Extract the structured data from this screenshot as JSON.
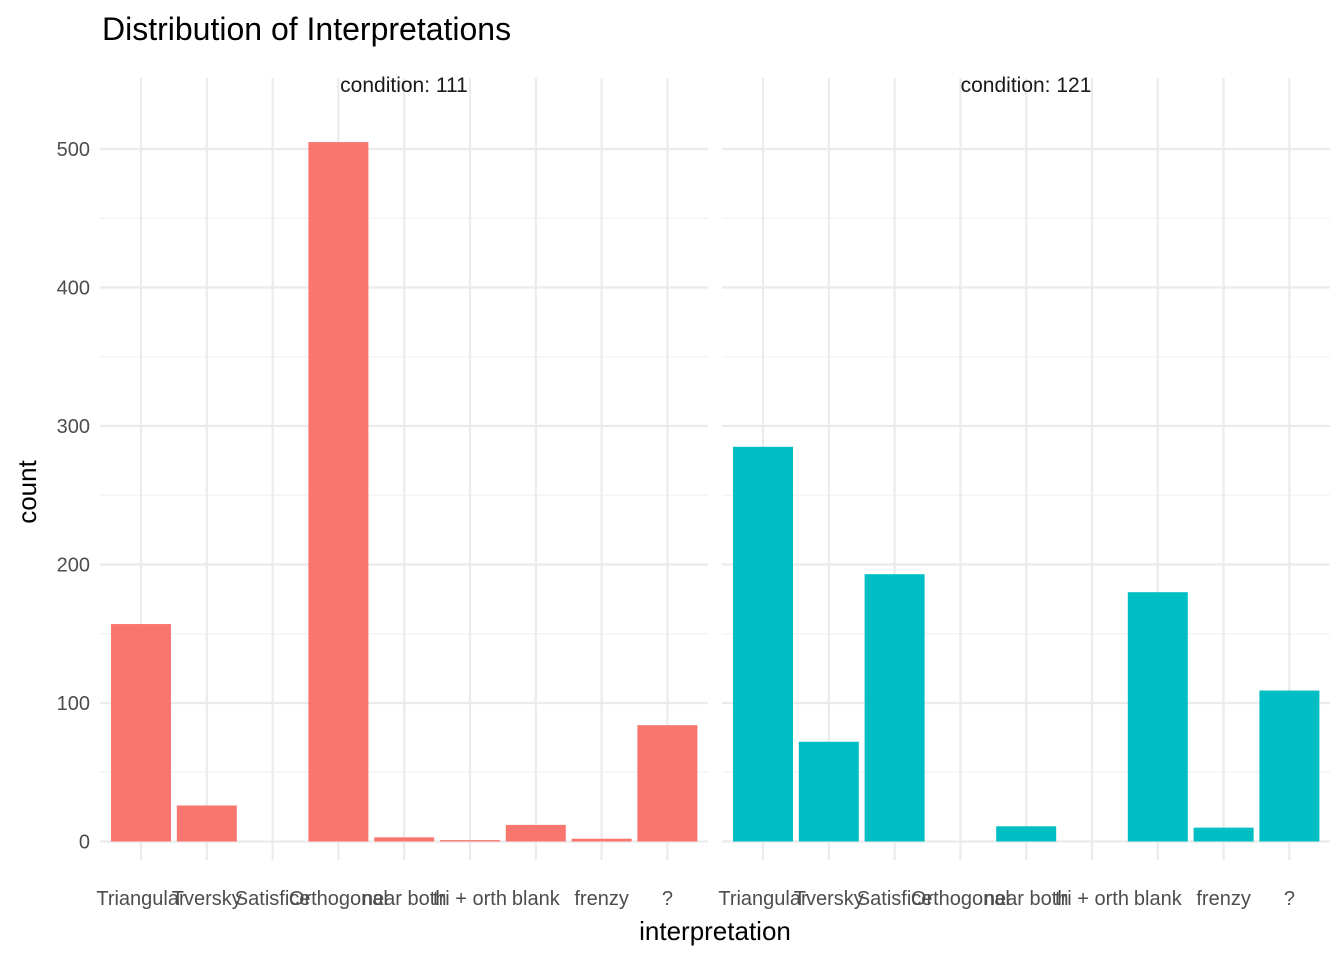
{
  "chart_data": {
    "type": "bar",
    "title": "Distribution of Interpretations",
    "xlabel": "interpretation",
    "ylabel": "count",
    "ylim": [
      0,
      530
    ],
    "yticks": [
      0,
      100,
      200,
      300,
      400,
      500
    ],
    "grid": true,
    "categories": [
      "Triangular",
      "Tversky",
      "Satisfice",
      "Orthogonal",
      "near both",
      "tri + orth",
      "blank",
      "frenzy",
      "?"
    ],
    "facets": [
      {
        "label": "condition: 111",
        "color": "#F8766D",
        "values": [
          157,
          26,
          0,
          505,
          3,
          1,
          12,
          2,
          84
        ]
      },
      {
        "label": "condition: 121",
        "color": "#00BFC4",
        "values": [
          285,
          72,
          193,
          0,
          11,
          0,
          180,
          10,
          109
        ]
      }
    ]
  }
}
